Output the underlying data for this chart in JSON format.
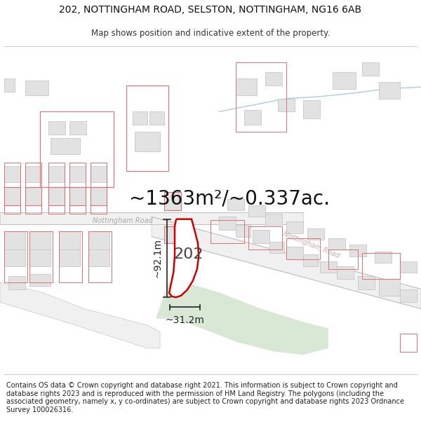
{
  "title": "202, NOTTINGHAM ROAD, SELSTON, NOTTINGHAM, NG16 6AB",
  "subtitle": "Map shows position and indicative extent of the property.",
  "footer": "Contains OS data © Crown copyright and database right 2021. This information is subject to Crown copyright and database rights 2023 and is reproduced with the permission of HM Land Registry. The polygons (including the associated geometry, namely x, y co-ordinates) are subject to Crown copyright and database rights 2023 Ordnance Survey 100026316.",
  "area_label": "~1363m²/~0.337ac.",
  "width_label": "~31.2m",
  "height_label": "~92.1m",
  "plot_number": "202",
  "bg_color": "#ffffff",
  "road_label1": "Nottingham Road",
  "road_label2": "Nottingham Road",
  "road_color_light": "#e0e0e0",
  "building_fill": "#e0e0e0",
  "building_edge_grey": "#bbbbbb",
  "building_edge_red": "#e08080",
  "plot_edge": "#cc0000",
  "plot_fill": "#ffffff",
  "green_fill": "#d6e8d4",
  "blue_color": "#aaccdd",
  "dim_color": "#222222",
  "area_fontsize": 20,
  "plot_fontsize": 16,
  "dim_fontsize": 10,
  "road_fontsize": 7,
  "title_fontsize": 10,
  "subtitle_fontsize": 8.5,
  "footer_fontsize": 7
}
